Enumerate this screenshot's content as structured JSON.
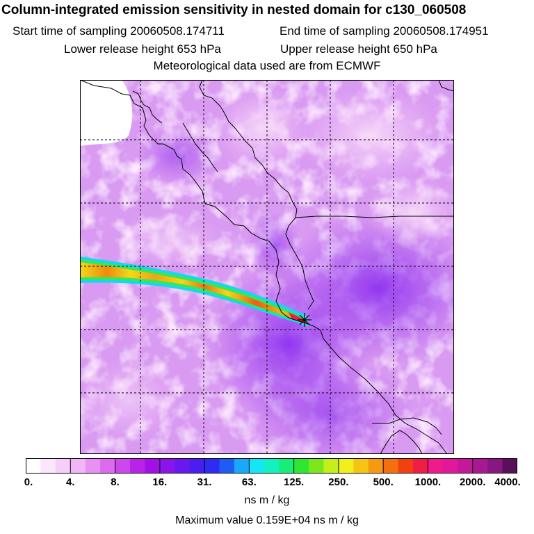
{
  "header": {
    "title": "Column-integrated emission sensitivity in nested domain for c130_060508",
    "start_time": "Start time of sampling 20060508.174711",
    "end_time": "End time of sampling 20060508.174951",
    "lower_release": "Lower release height  653 hPa",
    "upper_release": "Upper release height  650 hPa",
    "met_data": "Meteorological data used are from ECMWF"
  },
  "legend": {
    "labels": [
      "0.",
      "4.",
      "8.",
      "16.",
      "31.",
      "63.",
      "125.",
      "250.",
      "500.",
      "1000.",
      "2000.",
      "4000."
    ],
    "colors": [
      "#ffffff",
      "#fbe6fb",
      "#f6cff8",
      "#f0b6f5",
      "#e891f2",
      "#dc6bef",
      "#cd48ec",
      "#bb22e8",
      "#a30fe6",
      "#8a14ea",
      "#6a18ee",
      "#4a1ef0",
      "#2e2cf2",
      "#1f5cf6",
      "#19a8fa",
      "#14e6f6",
      "#12f2c0",
      "#16ee7a",
      "#2ce832",
      "#7ce81c",
      "#c2f018",
      "#f0f01a",
      "#f8c414",
      "#f89a10",
      "#f4700e",
      "#f24010",
      "#ee1e44",
      "#f01a8a",
      "#e2189c",
      "#c4189a",
      "#a81892",
      "#8a1682",
      "#5a0f5a"
    ],
    "units": "ns m / kg",
    "max_value": "Maximum value  0.159E+04 ns m / kg"
  },
  "map": {
    "background_color": "#e6a6f4",
    "grid_style": "dashed",
    "release_marker": "star-marker"
  }
}
